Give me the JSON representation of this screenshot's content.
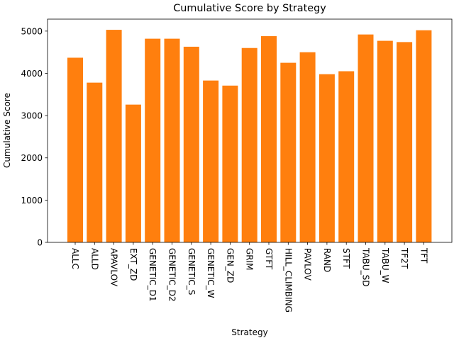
{
  "chart_data": {
    "type": "bar",
    "title": "Cumulative Score by Strategy",
    "xlabel": "Strategy",
    "ylabel": "Cumulative Score",
    "categories": [
      "ALLC",
      "ALLD",
      "APAVLOV",
      "EXT_ZD",
      "GENETIC_D1",
      "GENETIC_D2",
      "GENETIC_S",
      "GENETIC_W",
      "GEN_ZD",
      "GRIM",
      "GTFT",
      "HILL_CLIMBING",
      "PAVLOV",
      "RAND",
      "STFT",
      "TABU_SD",
      "TABU_W",
      "TF2T",
      "TFT"
    ],
    "values": [
      4370,
      3780,
      5030,
      3260,
      4820,
      4820,
      4630,
      3830,
      3710,
      4600,
      4880,
      4250,
      4500,
      3980,
      4050,
      4920,
      4770,
      4740,
      5020
    ],
    "ylim": [
      0,
      5283
    ],
    "yticks": [
      0,
      1000,
      2000,
      3000,
      4000,
      5000
    ],
    "bar_color": "#ff7f0e",
    "grid": false,
    "legend": "none"
  }
}
